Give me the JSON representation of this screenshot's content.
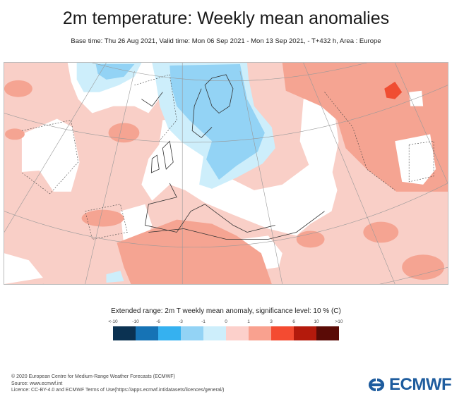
{
  "header": {
    "title": "2m temperature: Weekly mean anomalies",
    "subtitle": "Base time: Thu 26 Aug 2021, Valid time: Mon 06 Sep 2021 - Mon 13 Sep 2021, - T+432 h, Area : Europe"
  },
  "map": {
    "area": "Europe",
    "variable": "2m temperature weekly mean anomaly"
  },
  "legend": {
    "title": "Extended range: 2m T weekly mean anomaly, significance level: 10 % (C)",
    "labels": [
      "<-10",
      "-10",
      "-6",
      "-3",
      "-1",
      "0",
      "1",
      "3",
      "6",
      "10",
      ">10"
    ],
    "colors": [
      "#0b3252",
      "#1673b5",
      "#35b1f0",
      "#93d3f5",
      "#cdeefb",
      "#fcd0cb",
      "#f9a18f",
      "#f44b31",
      "#b41a0c",
      "#5a0b06"
    ]
  },
  "footer": {
    "line1": "© 2020 European Centre for Medium-Range Weather Forecasts (ECMWF)",
    "line2": "Source: www.ecmwf.int",
    "line3": "Licence: CC-BY-4.0 and ECMWF Terms of Use(https://apps.ecmwf.int/datasets/licences/general/)"
  },
  "logo": {
    "text": "ECMWF",
    "color": "#1e5c9e"
  }
}
